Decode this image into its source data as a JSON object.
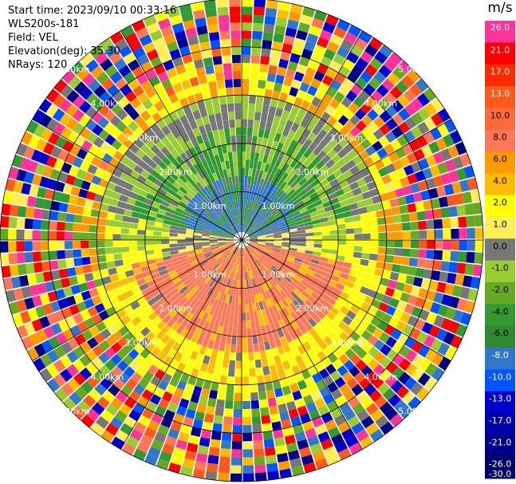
{
  "header": {
    "start_time": "Start time: 2023/09/10 00:33:16",
    "instrument": "WLS200s-181",
    "field": "Field: VEL",
    "elevation": "Elevation(deg): 35.30",
    "nrays": "NRays: 120"
  },
  "range_ring_labels": [
    "1.00km",
    "2.00km",
    "3.00km",
    "4.00km",
    "5.00km"
  ],
  "colorbar": {
    "unit": "m/s",
    "ticks": [
      "26.0",
      "21.0",
      "17.0",
      "13.0",
      "10.0",
      "8.0",
      "6.0",
      "4.0",
      "2.0",
      "1.0",
      "0.0",
      "-1.0",
      "-2.0",
      "-4.0",
      "-6.0",
      "-8.0",
      "-10.0",
      "-13.0",
      "-17.0",
      "-21.0",
      "-26.0",
      "-30.0"
    ],
    "colors": [
      "#ff3399",
      "#ff0000",
      "#ff2a00",
      "#ff5a1a",
      "#ff6a3a",
      "#ff7755",
      "#ff9900",
      "#ffbb00",
      "#ffff00",
      "#ffee55",
      "#777777",
      "#99cc33",
      "#66aa22",
      "#339933",
      "#2f8a2f",
      "#3377cc",
      "#0055ff",
      "#0000cc",
      "#0000aa",
      "#000088",
      "#000066"
    ]
  }
}
